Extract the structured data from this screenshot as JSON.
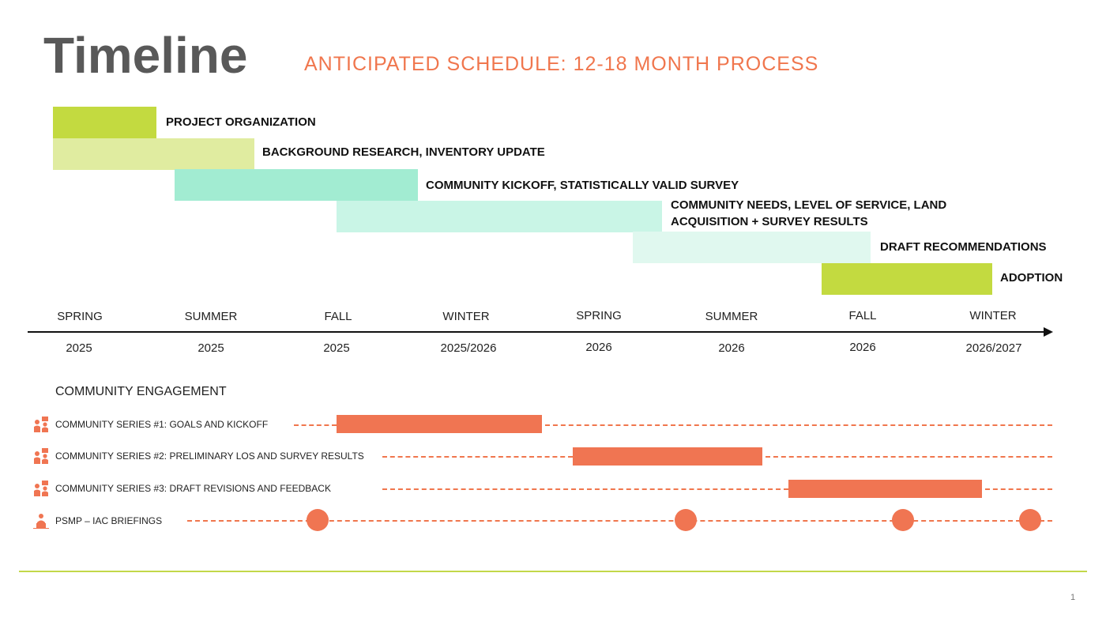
{
  "header": {
    "title": "Timeline",
    "subtitle": "ANTICIPATED SCHEDULE: 12-18 MONTH PROCESS"
  },
  "colors": {
    "lime": "#c3da40",
    "lime_light": "#e0eca0",
    "teal": "#a2ecd2",
    "teal_light": "#c9f5e6",
    "teal_lighter": "#e0f8ef",
    "orange": "#f07552",
    "rule": "#c3d84a"
  },
  "phases": [
    {
      "label": "PROJECT ORGANIZATION"
    },
    {
      "label": "BACKGROUND RESEARCH, INVENTORY UPDATE"
    },
    {
      "label": "COMMUNITY KICKOFF, STATISTICALLY VALID SURVEY"
    },
    {
      "label": "COMMUNITY NEEDS, LEVEL OF SERVICE, LAND ACQUISITION + SURVEY RESULTS",
      "line1": "COMMUNITY NEEDS, LEVEL OF SERVICE, LAND",
      "line2": "ACQUISITION + SURVEY RESULTS"
    },
    {
      "label": "DRAFT RECOMMENDATIONS"
    },
    {
      "label": "ADOPTION"
    }
  ],
  "seasons": [
    {
      "season": "SPRING",
      "year": "2025"
    },
    {
      "season": "SUMMER",
      "year": "2025"
    },
    {
      "season": "FALL",
      "year": "2025"
    },
    {
      "season": "WINTER",
      "year": "2025/2026"
    },
    {
      "season": "SPRING",
      "year": "2026"
    },
    {
      "season": "SUMMER",
      "year": "2026"
    },
    {
      "season": "FALL",
      "year": "2026"
    },
    {
      "season": "WINTER",
      "year": "2026/2027"
    }
  ],
  "engagement": {
    "heading": "COMMUNITY ENGAGEMENT",
    "rows": [
      {
        "label": "COMMUNITY SERIES #1: GOALS AND KICKOFF",
        "icon": "community-group-icon"
      },
      {
        "label": "COMMUNITY SERIES #2: PRELIMINARY LOS AND SURVEY RESULTS",
        "icon": "community-group-icon"
      },
      {
        "label": "COMMUNITY SERIES #3: DRAFT REVISIONS AND FEEDBACK",
        "icon": "community-group-icon"
      },
      {
        "label": "PSMP – IAC BRIEFINGS",
        "icon": "presenter-icon"
      }
    ]
  },
  "page_number": "1"
}
